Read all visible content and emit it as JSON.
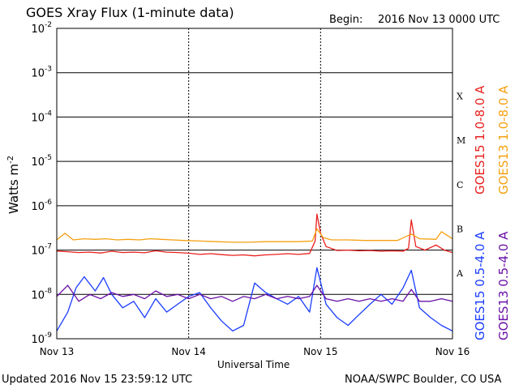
{
  "header": {
    "title": "GOES Xray Flux (1-minute data)",
    "begin_label": "Begin:",
    "begin_value": "2016 Nov 13 0000 UTC"
  },
  "footer": {
    "updated": "Updated 2016 Nov 15 23:59:12 UTC",
    "credit": "NOAA/SWPC Boulder, CO USA"
  },
  "colors": {
    "goes15_long": "#e8201e",
    "goes13_long": "#f5a010",
    "goes15_short": "#1a3cff",
    "goes13_short": "#6a10a8",
    "grid": "#000000"
  },
  "chart_data": {
    "type": "line",
    "title": "GOES Xray Flux (1-minute data)",
    "xlabel": "Universal Time",
    "ylabel": "Watts m",
    "ylabel_superscript": "-2",
    "yscale": "log",
    "ylim": [
      1e-09,
      0.01
    ],
    "xlim": [
      "2016-11-13T00:00",
      "2016-11-16T00:00"
    ],
    "grid": true,
    "y_ticks": [
      {
        "value": 0.01,
        "base": "10",
        "exp": "-2"
      },
      {
        "value": 0.001,
        "base": "10",
        "exp": "-3"
      },
      {
        "value": 0.0001,
        "base": "10",
        "exp": "-4"
      },
      {
        "value": 1e-05,
        "base": "10",
        "exp": "-5"
      },
      {
        "value": 1e-06,
        "base": "10",
        "exp": "-6"
      },
      {
        "value": 1e-07,
        "base": "10",
        "exp": "-7"
      },
      {
        "value": 1e-08,
        "base": "10",
        "exp": "-8"
      },
      {
        "value": 1e-09,
        "base": "10",
        "exp": "-9"
      }
    ],
    "x_ticks": [
      {
        "value": "2016-11-13",
        "label": "Nov 13"
      },
      {
        "value": "2016-11-14",
        "label": "Nov 14"
      },
      {
        "value": "2016-11-15",
        "label": "Nov 15"
      },
      {
        "value": "2016-11-16",
        "label": "Nov 16"
      }
    ],
    "flare_classes": [
      {
        "label": "X",
        "value": 0.0003
      },
      {
        "label": "M",
        "value": 3e-05
      },
      {
        "label": "C",
        "value": 3e-06
      },
      {
        "label": "B",
        "value": 3e-07
      },
      {
        "label": "A",
        "value": 3e-08
      }
    ],
    "legend_position": "right-vertical",
    "series": [
      {
        "name": "GOES15 1.0-8.0 A",
        "color": "#e8201e",
        "points": [
          [
            "2016-11-13T00:00",
            9.5e-08
          ],
          [
            "2016-11-13T02:00",
            9.2e-08
          ],
          [
            "2016-11-13T04:00",
            8.8e-08
          ],
          [
            "2016-11-13T06:00",
            9e-08
          ],
          [
            "2016-11-13T08:00",
            8.6e-08
          ],
          [
            "2016-11-13T10:00",
            9.4e-08
          ],
          [
            "2016-11-13T12:00",
            8.8e-08
          ],
          [
            "2016-11-13T14:00",
            9e-08
          ],
          [
            "2016-11-13T16:00",
            8.7e-08
          ],
          [
            "2016-11-13T18:00",
            9.6e-08
          ],
          [
            "2016-11-13T20:00",
            9e-08
          ],
          [
            "2016-11-13T22:00",
            8.8e-08
          ],
          [
            "2016-11-14T00:00",
            8.5e-08
          ],
          [
            "2016-11-14T02:00",
            8e-08
          ],
          [
            "2016-11-14T04:00",
            8.3e-08
          ],
          [
            "2016-11-14T06:00",
            7.9e-08
          ],
          [
            "2016-11-14T08:00",
            7.6e-08
          ],
          [
            "2016-11-14T10:00",
            7.8e-08
          ],
          [
            "2016-11-14T12:00",
            7.4e-08
          ],
          [
            "2016-11-14T14:00",
            7.8e-08
          ],
          [
            "2016-11-14T16:00",
            8e-08
          ],
          [
            "2016-11-14T18:00",
            8.3e-08
          ],
          [
            "2016-11-14T20:00",
            8e-08
          ],
          [
            "2016-11-14T22:00",
            8.4e-08
          ],
          [
            "2016-11-14T23:00",
            1.6e-07
          ],
          [
            "2016-11-14T23:20",
            6.5e-07
          ],
          [
            "2016-11-15T00:00",
            2.4e-07
          ],
          [
            "2016-11-15T01:00",
            1.2e-07
          ],
          [
            "2016-11-15T03:00",
            9.8e-08
          ],
          [
            "2016-11-15T05:00",
            1e-07
          ],
          [
            "2016-11-15T07:00",
            9.6e-08
          ],
          [
            "2016-11-15T09:00",
            9.8e-08
          ],
          [
            "2016-11-15T11:00",
            9.4e-08
          ],
          [
            "2016-11-15T13:00",
            9.6e-08
          ],
          [
            "2016-11-15T15:00",
            9.4e-08
          ],
          [
            "2016-11-15T16:00",
            1.1e-07
          ],
          [
            "2016-11-15T16:30",
            4.8e-07
          ],
          [
            "2016-11-15T17:20",
            1.2e-07
          ],
          [
            "2016-11-15T19:00",
            1e-07
          ],
          [
            "2016-11-15T21:00",
            1.3e-07
          ],
          [
            "2016-11-15T22:30",
            1e-07
          ],
          [
            "2016-11-16T00:00",
            8.8e-08
          ]
        ]
      },
      {
        "name": "GOES13 1.0-8.0 A",
        "color": "#f5a010",
        "points": [
          [
            "2016-11-13T00:00",
            1.7e-07
          ],
          [
            "2016-11-13T01:30",
            2.4e-07
          ],
          [
            "2016-11-13T03:00",
            1.7e-07
          ],
          [
            "2016-11-13T05:00",
            1.8e-07
          ],
          [
            "2016-11-13T07:00",
            1.75e-07
          ],
          [
            "2016-11-13T09:00",
            1.8e-07
          ],
          [
            "2016-11-13T11:00",
            1.7e-07
          ],
          [
            "2016-11-13T13:00",
            1.75e-07
          ],
          [
            "2016-11-13T15:00",
            1.7e-07
          ],
          [
            "2016-11-13T17:00",
            1.8e-07
          ],
          [
            "2016-11-13T19:00",
            1.75e-07
          ],
          [
            "2016-11-13T21:00",
            1.7e-07
          ],
          [
            "2016-11-13T23:00",
            1.65e-07
          ],
          [
            "2016-11-14T02:00",
            1.6e-07
          ],
          [
            "2016-11-14T05:00",
            1.55e-07
          ],
          [
            "2016-11-14T08:00",
            1.5e-07
          ],
          [
            "2016-11-14T11:00",
            1.5e-07
          ],
          [
            "2016-11-14T14:00",
            1.55e-07
          ],
          [
            "2016-11-14T17:00",
            1.55e-07
          ],
          [
            "2016-11-14T20:00",
            1.55e-07
          ],
          [
            "2016-11-14T22:30",
            1.6e-07
          ],
          [
            "2016-11-14T23:20",
            3e-07
          ],
          [
            "2016-11-15T00:30",
            1.9e-07
          ],
          [
            "2016-11-15T02:00",
            1.7e-07
          ],
          [
            "2016-11-15T05:00",
            1.7e-07
          ],
          [
            "2016-11-15T08:00",
            1.65e-07
          ],
          [
            "2016-11-15T11:00",
            1.65e-07
          ],
          [
            "2016-11-15T14:00",
            1.65e-07
          ],
          [
            "2016-11-15T16:30",
            2.3e-07
          ],
          [
            "2016-11-15T18:00",
            1.8e-07
          ],
          [
            "2016-11-15T21:00",
            1.75e-07
          ],
          [
            "2016-11-15T22:00",
            2.6e-07
          ],
          [
            "2016-11-16T00:00",
            1.8e-07
          ]
        ]
      },
      {
        "name": "GOES15 0.5-4.0 A",
        "color": "#1a3cff",
        "points": [
          [
            "2016-11-13T00:00",
            1.5e-09
          ],
          [
            "2016-11-13T02:00",
            4e-09
          ],
          [
            "2016-11-13T03:30",
            1.4e-08
          ],
          [
            "2016-11-13T05:00",
            2.5e-08
          ],
          [
            "2016-11-13T07:00",
            1.2e-08
          ],
          [
            "2016-11-13T08:30",
            2.4e-08
          ],
          [
            "2016-11-13T10:00",
            1e-08
          ],
          [
            "2016-11-13T12:00",
            5e-09
          ],
          [
            "2016-11-13T14:00",
            7e-09
          ],
          [
            "2016-11-13T16:00",
            3e-09
          ],
          [
            "2016-11-13T18:00",
            8e-09
          ],
          [
            "2016-11-13T20:00",
            4e-09
          ],
          [
            "2016-11-13T22:00",
            6e-09
          ],
          [
            "2016-11-14T00:00",
            9e-09
          ],
          [
            "2016-11-14T02:00",
            1.1e-08
          ],
          [
            "2016-11-14T04:00",
            5e-09
          ],
          [
            "2016-11-14T06:00",
            2.5e-09
          ],
          [
            "2016-11-14T08:00",
            1.5e-09
          ],
          [
            "2016-11-14T10:00",
            2e-09
          ],
          [
            "2016-11-14T12:00",
            1.8e-08
          ],
          [
            "2016-11-14T14:00",
            1.1e-08
          ],
          [
            "2016-11-14T16:00",
            8e-09
          ],
          [
            "2016-11-14T18:00",
            6e-09
          ],
          [
            "2016-11-14T20:00",
            9e-09
          ],
          [
            "2016-11-14T22:00",
            4e-09
          ],
          [
            "2016-11-14T23:20",
            4e-08
          ],
          [
            "2016-11-15T01:00",
            6e-09
          ],
          [
            "2016-11-15T03:00",
            3e-09
          ],
          [
            "2016-11-15T05:00",
            2e-09
          ],
          [
            "2016-11-15T07:00",
            3.5e-09
          ],
          [
            "2016-11-15T09:00",
            6e-09
          ],
          [
            "2016-11-15T11:00",
            1e-08
          ],
          [
            "2016-11-15T13:00",
            6e-09
          ],
          [
            "2016-11-15T15:00",
            1.4e-08
          ],
          [
            "2016-11-15T16:30",
            3.5e-08
          ],
          [
            "2016-11-15T18:00",
            5e-09
          ],
          [
            "2016-11-15T20:00",
            3e-09
          ],
          [
            "2016-11-15T22:00",
            2e-09
          ],
          [
            "2016-11-16T00:00",
            1.5e-09
          ]
        ]
      },
      {
        "name": "GOES13 0.5-4.0 A",
        "color": "#6a10a8",
        "points": [
          [
            "2016-11-13T00:00",
            9e-09
          ],
          [
            "2016-11-13T02:00",
            1.6e-08
          ],
          [
            "2016-11-13T04:00",
            7e-09
          ],
          [
            "2016-11-13T06:00",
            1e-08
          ],
          [
            "2016-11-13T08:00",
            8e-09
          ],
          [
            "2016-11-13T10:00",
            1.1e-08
          ],
          [
            "2016-11-13T12:00",
            9e-09
          ],
          [
            "2016-11-13T14:00",
            1e-08
          ],
          [
            "2016-11-13T16:00",
            8e-09
          ],
          [
            "2016-11-13T18:00",
            1.2e-08
          ],
          [
            "2016-11-13T20:00",
            9e-09
          ],
          [
            "2016-11-13T22:00",
            1e-08
          ],
          [
            "2016-11-14T00:00",
            8e-09
          ],
          [
            "2016-11-14T02:00",
            1e-08
          ],
          [
            "2016-11-14T04:00",
            8e-09
          ],
          [
            "2016-11-14T06:00",
            9e-09
          ],
          [
            "2016-11-14T08:00",
            7e-09
          ],
          [
            "2016-11-14T10:00",
            9e-09
          ],
          [
            "2016-11-14T12:00",
            8e-09
          ],
          [
            "2016-11-14T14:00",
            1e-08
          ],
          [
            "2016-11-14T16:00",
            8e-09
          ],
          [
            "2016-11-14T18:00",
            9e-09
          ],
          [
            "2016-11-14T20:00",
            8e-09
          ],
          [
            "2016-11-14T22:00",
            9e-09
          ],
          [
            "2016-11-14T23:20",
            1.6e-08
          ],
          [
            "2016-11-15T01:00",
            8e-09
          ],
          [
            "2016-11-15T03:00",
            7e-09
          ],
          [
            "2016-11-15T05:00",
            8e-09
          ],
          [
            "2016-11-15T07:00",
            7e-09
          ],
          [
            "2016-11-15T09:00",
            8e-09
          ],
          [
            "2016-11-15T11:00",
            7e-09
          ],
          [
            "2016-11-15T13:00",
            8e-09
          ],
          [
            "2016-11-15T15:00",
            7e-09
          ],
          [
            "2016-11-15T16:30",
            1.3e-08
          ],
          [
            "2016-11-15T18:00",
            7e-09
          ],
          [
            "2016-11-15T20:00",
            7e-09
          ],
          [
            "2016-11-15T22:00",
            8e-09
          ],
          [
            "2016-11-16T00:00",
            7e-09
          ]
        ]
      }
    ]
  }
}
